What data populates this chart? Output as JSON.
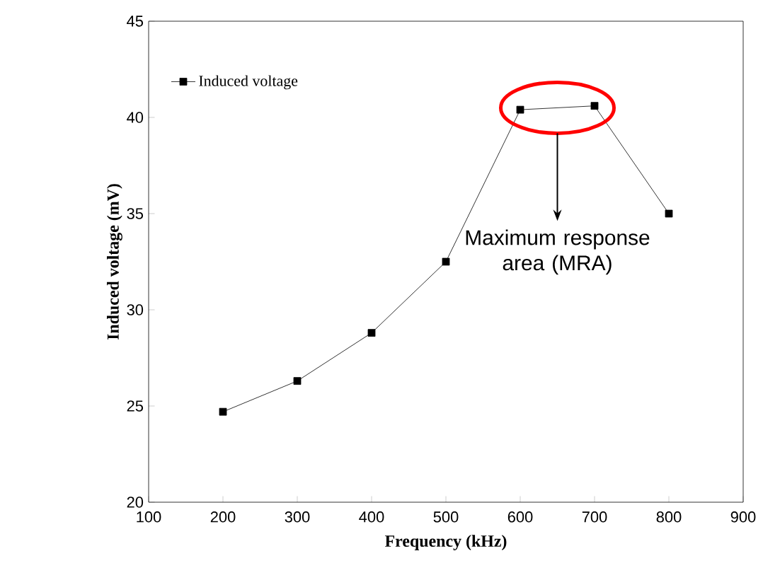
{
  "chart_data": {
    "type": "line",
    "xlabel": "Frequency (kHz)",
    "ylabel": "Induced voltage (mV)",
    "x": [
      200,
      300,
      400,
      500,
      600,
      700,
      800
    ],
    "series": [
      {
        "name": "Induced voltage",
        "color": "#000000",
        "values": [
          24.7,
          26.3,
          28.8,
          32.5,
          40.4,
          40.6,
          35.0
        ]
      }
    ],
    "xlim": [
      100,
      900
    ],
    "xticks": [
      100,
      200,
      300,
      400,
      500,
      600,
      700,
      800,
      900
    ],
    "ylim": [
      20,
      45
    ],
    "yticks": [
      20,
      25,
      30,
      35,
      40,
      45
    ],
    "marker": "square",
    "line_style": "solid",
    "legend": "top left",
    "annotations": [
      "Maximum response area (MRA)"
    ]
  }
}
